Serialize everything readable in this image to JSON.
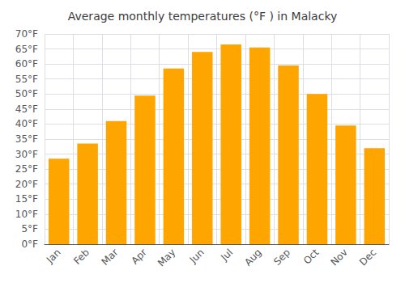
{
  "chart_data": {
    "type": "bar",
    "title": "Average monthly temperatures (°F ) in Malacky",
    "categories": [
      "Jan",
      "Feb",
      "Mar",
      "Apr",
      "May",
      "Jun",
      "Jul",
      "Aug",
      "Sep",
      "Oct",
      "Nov",
      "Dec"
    ],
    "values": [
      28.5,
      33.5,
      41.0,
      49.5,
      58.5,
      64.0,
      66.5,
      65.5,
      59.5,
      50.0,
      39.5,
      32.0
    ],
    "color": "#FFA500",
    "ylim": [
      0,
      70
    ],
    "yticks": [
      {
        "value": 0,
        "label": "0°F"
      },
      {
        "value": 5,
        "label": "5°F"
      },
      {
        "value": 10,
        "label": "10°F"
      },
      {
        "value": 15,
        "label": "15°F"
      },
      {
        "value": 20,
        "label": "20°F"
      },
      {
        "value": 25,
        "label": "25°F"
      },
      {
        "value": 30,
        "label": "30°F"
      },
      {
        "value": 35,
        "label": "35°F"
      },
      {
        "value": 40,
        "label": "40°F"
      },
      {
        "value": 45,
        "label": "45°F"
      },
      {
        "value": 50,
        "label": "50°F"
      },
      {
        "value": 55,
        "label": "55°F"
      },
      {
        "value": 60,
        "label": "60°F"
      },
      {
        "value": 65,
        "label": "65°F"
      },
      {
        "value": 70,
        "label": "70°F"
      }
    ],
    "grid": true
  }
}
